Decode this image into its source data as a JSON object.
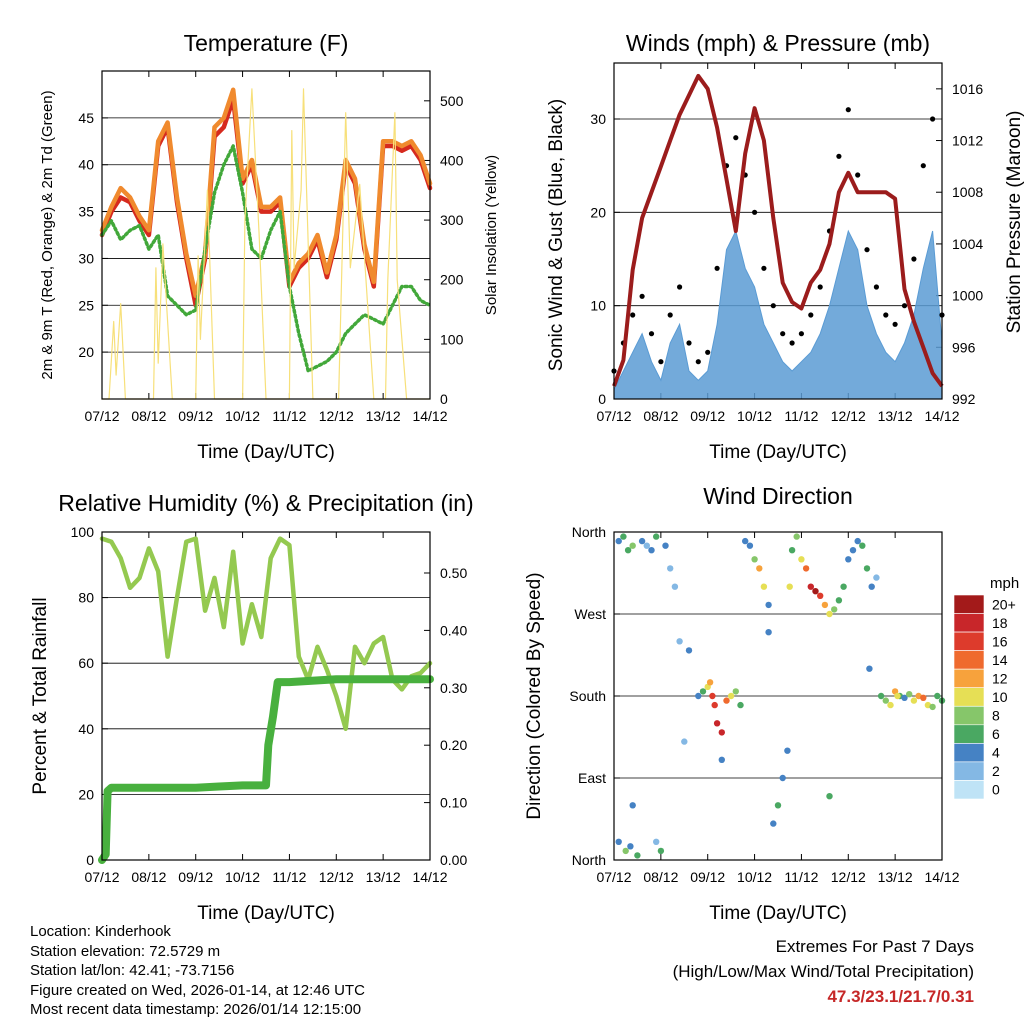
{
  "colors": {
    "temp_2m": "#d62a1e",
    "temp_9m": "#f08a2e",
    "dewpoint": "#42a83a",
    "solar": "#f7e07a",
    "wind": "#5a9bd4",
    "gust": "#000000",
    "pressure": "#9b1c1c",
    "rh": "#94c950",
    "precip": "#48b03e",
    "extremes": "#c62828"
  },
  "chart_data": [
    {
      "id": "temperature",
      "type": "line",
      "title": "Temperature (F)",
      "xlabel": "Time (Day/UTC)",
      "ylabel": "2m & 9m T (Red, Orange) & 2m Td (Green)",
      "ylabel_right": "Solar Insolation (Yellow)",
      "x_ticks": [
        "07/12",
        "08/12",
        "09/12",
        "10/12",
        "11/12",
        "12/12",
        "13/12",
        "14/12"
      ],
      "xlim": [
        0,
        7
      ],
      "ylim": [
        15,
        50
      ],
      "y_ticks": [
        20,
        25,
        30,
        35,
        40,
        45
      ],
      "ylim_right": [
        0,
        550
      ],
      "y_ticks_right": [
        0,
        100,
        200,
        300,
        400,
        500
      ],
      "series": [
        {
          "name": "2m T",
          "color": "#d62a1e",
          "axis": "left",
          "x": [
            0,
            0.2,
            0.4,
            0.6,
            0.8,
            1.0,
            1.2,
            1.4,
            1.6,
            1.8,
            2.0,
            2.2,
            2.4,
            2.6,
            2.8,
            3.0,
            3.2,
            3.4,
            3.6,
            3.8,
            4.0,
            4.2,
            4.4,
            4.6,
            4.8,
            5.0,
            5.2,
            5.4,
            5.6,
            5.8,
            6.0,
            6.2,
            6.4,
            6.6,
            6.8,
            7.0
          ],
          "values": [
            32.5,
            35,
            36.5,
            36,
            34,
            32.5,
            42,
            44,
            36,
            30,
            25,
            30,
            43,
            44,
            47,
            38,
            40,
            35,
            35,
            36,
            27,
            29,
            30,
            32,
            28,
            32,
            40,
            38,
            31,
            27,
            42,
            42,
            41.5,
            42,
            40.5,
            37.5
          ]
        },
        {
          "name": "9m T",
          "color": "#f08a2e",
          "axis": "left",
          "x": [
            0,
            0.2,
            0.4,
            0.6,
            0.8,
            1.0,
            1.2,
            1.4,
            1.6,
            1.8,
            2.0,
            2.2,
            2.4,
            2.6,
            2.8,
            3.0,
            3.2,
            3.4,
            3.6,
            3.8,
            4.0,
            4.2,
            4.4,
            4.6,
            4.8,
            5.0,
            5.2,
            5.4,
            5.6,
            5.8,
            6.0,
            6.2,
            6.4,
            6.6,
            6.8,
            7.0
          ],
          "values": [
            33,
            35.5,
            37.5,
            36.5,
            34.5,
            33,
            42.5,
            44.5,
            36.5,
            30.5,
            26,
            30.5,
            44,
            45,
            48,
            38.5,
            40.5,
            35.5,
            35.5,
            36.5,
            27.5,
            29.5,
            30.5,
            32.5,
            28.5,
            32.5,
            40.5,
            38.5,
            31.5,
            27.5,
            42.5,
            42.5,
            42,
            42.5,
            41,
            38
          ]
        },
        {
          "name": "2m Td",
          "color": "#42a83a",
          "axis": "left",
          "x": [
            0,
            0.2,
            0.4,
            0.6,
            0.8,
            1.0,
            1.2,
            1.4,
            1.6,
            1.8,
            2.0,
            2.2,
            2.4,
            2.6,
            2.8,
            3.0,
            3.2,
            3.4,
            3.6,
            3.8,
            4.0,
            4.2,
            4.4,
            4.6,
            4.8,
            5.0,
            5.2,
            5.4,
            5.6,
            5.8,
            6.0,
            6.2,
            6.4,
            6.6,
            6.8,
            7.0
          ],
          "values": [
            32.5,
            34,
            32,
            33,
            33.5,
            31,
            32.5,
            26,
            25,
            24,
            24.5,
            31,
            37,
            40,
            42,
            37,
            31,
            30,
            33,
            35,
            27,
            22,
            18,
            18.5,
            19,
            20,
            22,
            23,
            24,
            23.5,
            23,
            25,
            27,
            27,
            25.5,
            25
          ]
        },
        {
          "name": "Solar Insolation",
          "color": "#f7e07a",
          "axis": "right",
          "x": [
            0,
            0.15,
            0.25,
            0.3,
            0.4,
            0.5,
            0.9,
            1.1,
            1.15,
            1.2,
            1.3,
            1.5,
            1.8,
            2.0,
            2.05,
            2.1,
            2.25,
            2.4,
            2.6,
            2.85,
            3.0,
            3.05,
            3.2,
            3.35,
            3.5,
            3.8,
            4.0,
            4.05,
            4.1,
            4.25,
            4.3,
            4.5,
            4.8,
            5.05,
            5.2,
            5.3,
            5.5,
            5.8,
            6.05,
            6.1,
            6.25,
            6.3,
            6.5,
            7.0
          ],
          "values": [
            0,
            0,
            130,
            40,
            160,
            0,
            0,
            0,
            220,
            60,
            260,
            0,
            0,
            0,
            240,
            100,
            350,
            0,
            0,
            0,
            0,
            300,
            520,
            280,
            0,
            0,
            0,
            450,
            220,
            350,
            520,
            0,
            0,
            0,
            480,
            220,
            360,
            0,
            0,
            200,
            480,
            200,
            0,
            0
          ]
        }
      ]
    },
    {
      "id": "winds",
      "type": "scatter",
      "title": "Winds (mph) & Pressure (mb)",
      "xlabel": "Time (Day/UTC)",
      "ylabel": "Sonic Wind & Gust (Blue, Black)",
      "ylabel_right": "Station Pressure (Maroon)",
      "x_ticks": [
        "07/12",
        "08/12",
        "09/12",
        "10/12",
        "11/12",
        "12/12",
        "13/12",
        "14/12"
      ],
      "xlim": [
        0,
        7
      ],
      "ylim": [
        0,
        36
      ],
      "y_ticks": [
        0,
        10,
        20,
        30
      ],
      "ylim_right": [
        992,
        1018
      ],
      "y_ticks_right": [
        992,
        996,
        1000,
        1004,
        1008,
        1012,
        1016
      ],
      "series": [
        {
          "name": "Sonic Wind",
          "color": "#5a9bd4",
          "axis": "left",
          "x": [
            0,
            0.2,
            0.4,
            0.6,
            0.8,
            1.0,
            1.2,
            1.4,
            1.6,
            1.8,
            2.0,
            2.2,
            2.4,
            2.6,
            2.8,
            3.0,
            3.2,
            3.4,
            3.6,
            3.8,
            4.0,
            4.2,
            4.4,
            4.6,
            4.8,
            5.0,
            5.2,
            5.4,
            5.6,
            5.8,
            6.0,
            6.2,
            6.4,
            6.6,
            6.8,
            7.0
          ],
          "values": [
            1,
            3,
            5,
            7,
            4,
            2,
            6,
            8,
            3,
            2,
            3,
            8,
            16,
            18,
            14,
            12,
            8,
            6,
            4,
            3,
            4,
            5,
            7,
            10,
            14,
            18,
            16,
            10,
            7,
            5,
            4,
            6,
            9,
            14,
            18,
            6
          ]
        },
        {
          "name": "Gust",
          "color": "#000000",
          "axis": "left",
          "x": [
            0,
            0.2,
            0.4,
            0.6,
            0.8,
            1.0,
            1.2,
            1.4,
            1.6,
            1.8,
            2.0,
            2.2,
            2.4,
            2.6,
            2.8,
            3.0,
            3.2,
            3.4,
            3.6,
            3.8,
            4.0,
            4.2,
            4.4,
            4.6,
            4.8,
            5.0,
            5.2,
            5.4,
            5.6,
            5.8,
            6.0,
            6.2,
            6.4,
            6.6,
            6.8,
            7.0
          ],
          "values": [
            3,
            6,
            9,
            11,
            7,
            4,
            9,
            12,
            6,
            4,
            5,
            14,
            25,
            28,
            24,
            20,
            14,
            10,
            7,
            6,
            7,
            9,
            12,
            18,
            26,
            31,
            24,
            16,
            12,
            9,
            8,
            10,
            15,
            25,
            30,
            9
          ]
        },
        {
          "name": "Station Pressure",
          "color": "#9b1c1c",
          "axis": "right",
          "x": [
            0,
            0.2,
            0.4,
            0.6,
            0.8,
            1.0,
            1.2,
            1.4,
            1.6,
            1.8,
            2.0,
            2.2,
            2.4,
            2.6,
            2.8,
            3.0,
            3.2,
            3.4,
            3.6,
            3.8,
            4.0,
            4.2,
            4.4,
            4.6,
            4.8,
            5.0,
            5.2,
            5.4,
            5.6,
            5.8,
            6.0,
            6.2,
            6.4,
            6.6,
            6.8,
            7.0
          ],
          "values": [
            993,
            995,
            1002,
            1006,
            1008,
            1010,
            1012,
            1014,
            1015.5,
            1017,
            1016,
            1013,
            1009,
            1005,
            1011,
            1014.5,
            1012,
            1006,
            1001,
            999.5,
            999,
            1001,
            1002,
            1004,
            1008,
            1009.5,
            1008,
            1008,
            1008,
            1008,
            1007.5,
            1000.5,
            998,
            996,
            994,
            993
          ]
        }
      ]
    },
    {
      "id": "humidity",
      "type": "line",
      "title": "Relative Humidity (%) & Precipitation (in)",
      "xlabel": "Time (Day/UTC)",
      "ylabel": "Percent & Total Rainfall",
      "x_ticks": [
        "07/12",
        "08/12",
        "09/12",
        "10/12",
        "11/12",
        "12/12",
        "13/12",
        "14/12"
      ],
      "xlim": [
        0,
        7
      ],
      "ylim": [
        0,
        100
      ],
      "y_ticks": [
        0,
        20,
        40,
        60,
        80,
        100
      ],
      "ylim_right": [
        0,
        0.5714
      ],
      "y_ticks_right": [
        "0.00",
        "0.10",
        "0.20",
        "0.30",
        "0.40",
        "0.50"
      ],
      "series": [
        {
          "name": "Relative Humidity",
          "color": "#94c950",
          "axis": "left",
          "x": [
            0,
            0.2,
            0.4,
            0.6,
            0.8,
            1.0,
            1.2,
            1.4,
            1.6,
            1.8,
            2.0,
            2.2,
            2.4,
            2.6,
            2.8,
            3.0,
            3.2,
            3.4,
            3.6,
            3.8,
            4.0,
            4.2,
            4.4,
            4.6,
            4.8,
            5.0,
            5.2,
            5.4,
            5.6,
            5.8,
            6.0,
            6.2,
            6.4,
            6.6,
            6.8,
            7.0
          ],
          "values": [
            98,
            97,
            92,
            83,
            86,
            95,
            88,
            62,
            80,
            97,
            98,
            76,
            86,
            71,
            94,
            66,
            78,
            68,
            92,
            98,
            96,
            62,
            55,
            65,
            58,
            50,
            40,
            65,
            60,
            66,
            68,
            55,
            52,
            56,
            57,
            60
          ]
        },
        {
          "name": "Total Rainfall",
          "color": "#48b03e",
          "axis": "right",
          "x": [
            0,
            0.08,
            0.12,
            0.2,
            1.0,
            2.0,
            2.5,
            3.0,
            3.2,
            3.5,
            3.55,
            3.65,
            3.75,
            4.0,
            5.0,
            6.0,
            7.0
          ],
          "values": [
            0,
            0.01,
            0.12,
            0.126,
            0.126,
            0.126,
            0.128,
            0.13,
            0.13,
            0.13,
            0.2,
            0.25,
            0.31,
            0.31,
            0.315,
            0.315,
            0.315
          ]
        }
      ]
    },
    {
      "id": "wind_direction",
      "type": "scatter",
      "title": "Wind Direction",
      "xlabel": "Time (Day/UTC)",
      "ylabel": "Direction (Colored By Speed)",
      "x_ticks": [
        "07/12",
        "08/12",
        "09/12",
        "10/12",
        "11/12",
        "12/12",
        "13/12",
        "14/12"
      ],
      "xlim": [
        0,
        7
      ],
      "ylim": [
        0,
        360
      ],
      "y_tick_labels": [
        "North",
        "East",
        "South",
        "West",
        "North"
      ],
      "colorbar_title": "mph",
      "colorbar_labels": [
        "20+",
        "18",
        "16",
        "14",
        "12",
        "10",
        "8",
        "6",
        "4",
        "2",
        "0"
      ],
      "colorbar_colors": [
        "#a31a1a",
        "#c8262a",
        "#dd3b2c",
        "#ef6a2e",
        "#f7a23c",
        "#e6df55",
        "#86c66a",
        "#4aa862",
        "#4582c4",
        "#84b8e4",
        "#bfe3f6"
      ],
      "points": {
        "x": [
          0.1,
          0.2,
          0.3,
          0.4,
          0.1,
          0.25,
          0.35,
          0.5,
          0.6,
          0.7,
          0.8,
          0.9,
          1.0,
          1.1,
          1.2,
          1.3,
          1.4,
          1.6,
          1.8,
          1.9,
          2.0,
          2.05,
          2.1,
          2.15,
          2.2,
          2.3,
          2.4,
          2.5,
          2.6,
          2.7,
          2.8,
          2.9,
          3.0,
          3.1,
          3.2,
          3.3,
          3.4,
          3.5,
          3.6,
          3.7,
          3.8,
          3.9,
          4.0,
          4.1,
          4.2,
          4.3,
          4.4,
          4.5,
          4.6,
          4.7,
          4.8,
          4.9,
          5.0,
          5.1,
          5.2,
          5.3,
          5.4,
          5.5,
          5.6,
          5.7,
          5.8,
          5.9,
          6.0,
          6.1,
          6.2,
          6.3,
          6.4,
          6.5,
          6.6,
          6.7,
          6.8,
          6.9,
          7.0,
          0.4,
          0.9,
          1.5,
          2.3,
          3.3,
          3.75,
          4.6,
          5.45,
          6.05
        ],
        "y": [
          350,
          355,
          340,
          345,
          20,
          10,
          15,
          5,
          350,
          345,
          340,
          355,
          10,
          345,
          320,
          300,
          240,
          230,
          180,
          185,
          190,
          195,
          180,
          170,
          150,
          140,
          175,
          180,
          185,
          170,
          350,
          345,
          330,
          320,
          300,
          280,
          40,
          60,
          90,
          120,
          340,
          355,
          330,
          320,
          300,
          295,
          290,
          280,
          270,
          275,
          285,
          300,
          330,
          340,
          350,
          345,
          320,
          300,
          310,
          180,
          175,
          170,
          185,
          180,
          178,
          182,
          175,
          180,
          178,
          170,
          168,
          180,
          175,
          60,
          20,
          130,
          110,
          250,
          300,
          70,
          210,
          180
        ],
        "speed": [
          4,
          6,
          5,
          8,
          3,
          7,
          4,
          6,
          3,
          2,
          4,
          5,
          6,
          4,
          2,
          1,
          2,
          3,
          4,
          6,
          9,
          12,
          15,
          16,
          17,
          18,
          14,
          10,
          8,
          6,
          3,
          4,
          8,
          12,
          10,
          4,
          3,
          5,
          4,
          3,
          6,
          8,
          10,
          14,
          17,
          19,
          15,
          12,
          9,
          7,
          6,
          5,
          4,
          3,
          4,
          5,
          6,
          4,
          2,
          6,
          8,
          10,
          12,
          6,
          4,
          7,
          9,
          12,
          14,
          10,
          8,
          6,
          5,
          3,
          2,
          2,
          4,
          3,
          10,
          5,
          4,
          9
        ]
      }
    }
  ],
  "footer": {
    "location": "Location: Kinderhook",
    "elevation": "Station elevation: 72.5729 m",
    "latlon": "Station lat/lon: 42.41; -73.7156",
    "created": "Figure created on Wed, 2026-01-14, at 12:46 UTC",
    "recent": "Most recent data timestamp: 2026/01/14 12:15:00"
  },
  "extremes": {
    "title": "Extremes For Past 7 Days",
    "subtitle": "(High/Low/Max Wind/Total Precipitation)",
    "values": "47.3/23.1/21.7/0.31"
  }
}
